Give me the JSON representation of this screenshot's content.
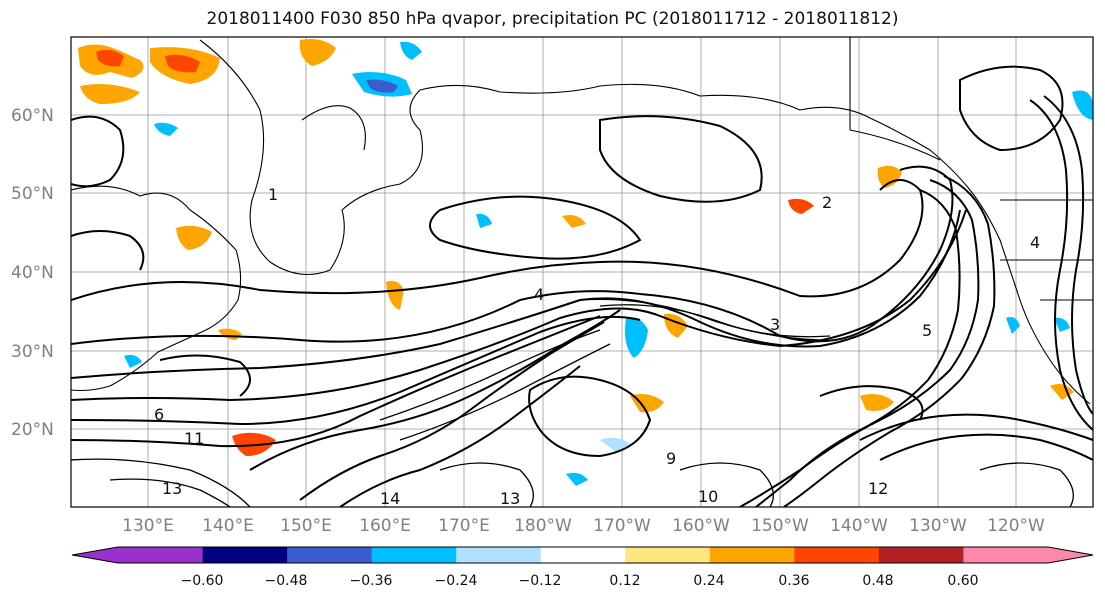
{
  "title": "2018011400 F030 850 hPa qvapor, precipitation PC (2018011712 - 2018011812)",
  "lat_labels": [
    "60°N",
    "50°N",
    "40°N",
    "30°N",
    "20°N"
  ],
  "lon_labels": [
    "130°E",
    "140°E",
    "150°E",
    "160°E",
    "170°E",
    "180°W",
    "170°W",
    "160°W",
    "150°W",
    "140°W",
    "130°W",
    "120°W"
  ],
  "colorbar": {
    "colors": [
      "#9932cc",
      "#000080",
      "#3a5ccc",
      "#00bfff",
      "#b0e0ff",
      "#ffffff",
      "#ffe680",
      "#ffa500",
      "#ff4500",
      "#b22222",
      "#ff88aa"
    ],
    "tick_labels": [
      "−0.60",
      "−0.48",
      "−0.36",
      "−0.24",
      "−0.12",
      "0.12",
      "0.24",
      "0.36",
      "0.48",
      "0.60"
    ]
  },
  "contour_labels": [
    "1",
    "2",
    "3",
    "4",
    "5",
    "6",
    "9",
    "10",
    "11",
    "12",
    "13",
    "14"
  ]
}
